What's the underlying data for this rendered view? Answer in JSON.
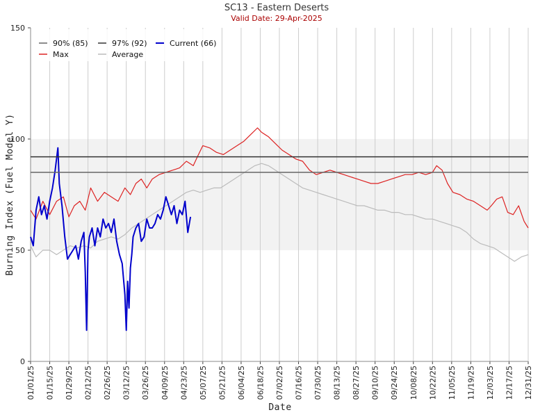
{
  "chart_data": {
    "type": "line",
    "title": "SC13 - Eastern Deserts",
    "subtitle": "Valid Date: 29-Apr-2025",
    "xlabel": "Date",
    "ylabel": "Burning Index (Fuel Model Y)",
    "ylim": [
      0,
      150
    ],
    "yticks": [
      "0",
      "50",
      "100",
      "150"
    ],
    "xlim": [
      1,
      365
    ],
    "xticks": [
      {
        "day": 1,
        "label": "01/01/25"
      },
      {
        "day": 15,
        "label": "01/15/25"
      },
      {
        "day": 29,
        "label": "01/29/25"
      },
      {
        "day": 43,
        "label": "02/12/25"
      },
      {
        "day": 57,
        "label": "02/26/25"
      },
      {
        "day": 71,
        "label": "03/12/25"
      },
      {
        "day": 85,
        "label": "03/26/25"
      },
      {
        "day": 99,
        "label": "04/09/25"
      },
      {
        "day": 113,
        "label": "04/23/25"
      },
      {
        "day": 127,
        "label": "05/07/25"
      },
      {
        "day": 141,
        "label": "05/21/25"
      },
      {
        "day": 155,
        "label": "06/04/25"
      },
      {
        "day": 169,
        "label": "06/18/25"
      },
      {
        "day": 183,
        "label": "07/02/25"
      },
      {
        "day": 197,
        "label": "07/16/25"
      },
      {
        "day": 211,
        "label": "07/30/25"
      },
      {
        "day": 225,
        "label": "08/13/25"
      },
      {
        "day": 239,
        "label": "08/27/25"
      },
      {
        "day": 253,
        "label": "09/10/25"
      },
      {
        "day": 267,
        "label": "09/24/25"
      },
      {
        "day": 281,
        "label": "10/08/25"
      },
      {
        "day": 295,
        "label": "10/22/25"
      },
      {
        "day": 309,
        "label": "11/05/25"
      },
      {
        "day": 323,
        "label": "11/19/25"
      },
      {
        "day": 337,
        "label": "12/03/25"
      },
      {
        "day": 351,
        "label": "12/17/25"
      },
      {
        "day": 365,
        "label": "12/31/25"
      }
    ],
    "grid": {
      "vertical": true,
      "horizontal": false
    },
    "band": {
      "y0": 50,
      "y1": 100,
      "color": "#f2f2f2"
    },
    "legend_position": "top-left",
    "hlines": [
      {
        "name": "90% (85)",
        "value": 85,
        "color": "#666666"
      },
      {
        "name": "97% (92)",
        "value": 92,
        "color": "#333333"
      }
    ],
    "series": [
      {
        "name": "Max",
        "color": "#dd2222",
        "width": 1.2,
        "x": [
          1,
          5,
          10,
          15,
          20,
          25,
          29,
          33,
          37,
          41,
          45,
          50,
          55,
          60,
          65,
          70,
          74,
          78,
          82,
          86,
          90,
          95,
          100,
          105,
          110,
          115,
          120,
          123,
          127,
          132,
          137,
          142,
          147,
          152,
          157,
          162,
          167,
          170,
          175,
          180,
          185,
          190,
          195,
          200,
          205,
          210,
          215,
          220,
          225,
          230,
          235,
          240,
          245,
          250,
          255,
          260,
          265,
          270,
          275,
          280,
          285,
          290,
          295,
          298,
          302,
          306,
          310,
          315,
          320,
          325,
          330,
          335,
          338,
          342,
          346,
          350,
          354,
          358,
          362,
          365
        ],
        "values": [
          68,
          64,
          72,
          66,
          72,
          74,
          65,
          70,
          72,
          68,
          78,
          72,
          76,
          74,
          72,
          78,
          75,
          80,
          82,
          78,
          82,
          84,
          85,
          86,
          87,
          90,
          88,
          92,
          97,
          96,
          94,
          93,
          95,
          97,
          99,
          102,
          105,
          103,
          101,
          98,
          95,
          93,
          91,
          90,
          86,
          84,
          85,
          86,
          85,
          84,
          83,
          82,
          81,
          80,
          80,
          81,
          82,
          83,
          84,
          84,
          85,
          84,
          85,
          88,
          86,
          80,
          76,
          75,
          73,
          72,
          70,
          68,
          70,
          73,
          74,
          67,
          66,
          70,
          63,
          60
        ]
      },
      {
        "name": "Average",
        "color": "#bbbbbb",
        "width": 1.2,
        "x": [
          1,
          5,
          10,
          15,
          20,
          25,
          30,
          35,
          40,
          45,
          50,
          55,
          60,
          65,
          70,
          75,
          80,
          85,
          90,
          95,
          100,
          105,
          110,
          115,
          120,
          125,
          130,
          135,
          140,
          145,
          150,
          155,
          160,
          165,
          170,
          175,
          180,
          185,
          190,
          195,
          200,
          205,
          210,
          215,
          220,
          225,
          230,
          235,
          240,
          245,
          250,
          255,
          260,
          265,
          270,
          275,
          280,
          285,
          290,
          295,
          300,
          305,
          310,
          315,
          320,
          325,
          330,
          335,
          340,
          345,
          350,
          355,
          360,
          365
        ],
        "values": [
          52,
          47,
          50,
          50,
          48,
          50,
          52,
          51,
          52,
          51,
          54,
          55,
          56,
          55,
          57,
          60,
          62,
          64,
          66,
          68,
          70,
          72,
          74,
          76,
          77,
          76,
          77,
          78,
          78,
          80,
          82,
          84,
          86,
          88,
          89,
          88,
          86,
          84,
          82,
          80,
          78,
          77,
          76,
          75,
          74,
          73,
          72,
          71,
          70,
          70,
          69,
          68,
          68,
          67,
          67,
          66,
          66,
          65,
          64,
          64,
          63,
          62,
          61,
          60,
          58,
          55,
          53,
          52,
          51,
          49,
          47,
          45,
          47,
          48
        ]
      },
      {
        "name": "Current (66)",
        "color": "#0000cc",
        "width": 2,
        "x": [
          1,
          3,
          5,
          7,
          9,
          11,
          13,
          15,
          17,
          19,
          21,
          22,
          24,
          26,
          28,
          30,
          32,
          34,
          36,
          38,
          40,
          41,
          42,
          43,
          44,
          46,
          48,
          50,
          52,
          54,
          56,
          58,
          60,
          62,
          64,
          66,
          68,
          70,
          71,
          72,
          73,
          74,
          75,
          76,
          78,
          80,
          82,
          84,
          86,
          88,
          90,
          92,
          94,
          96,
          98,
          100,
          102,
          104,
          106,
          108,
          110,
          112,
          114,
          116,
          118
        ],
        "values": [
          56,
          52,
          68,
          74,
          66,
          70,
          64,
          72,
          78,
          86,
          96,
          80,
          70,
          56,
          46,
          48,
          50,
          52,
          46,
          54,
          58,
          40,
          14,
          50,
          56,
          60,
          52,
          60,
          56,
          64,
          60,
          62,
          58,
          64,
          54,
          48,
          44,
          30,
          14,
          36,
          24,
          42,
          48,
          56,
          60,
          62,
          54,
          56,
          64,
          60,
          60,
          62,
          66,
          64,
          68,
          74,
          70,
          66,
          70,
          62,
          68,
          66,
          72,
          58,
          65
        ]
      }
    ]
  }
}
